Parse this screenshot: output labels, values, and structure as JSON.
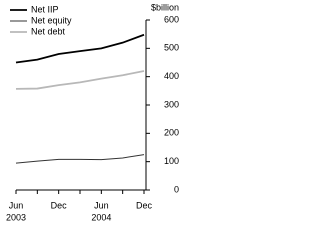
{
  "chart_data": {
    "type": "line",
    "y_label": "$billion",
    "categories": [
      "Jun",
      null,
      "Dec",
      null,
      "Jun",
      null,
      "Dec"
    ],
    "year_labels": [
      "2003",
      null,
      null,
      null,
      "2004",
      null,
      null
    ],
    "series": [
      {
        "name": "Net IIP",
        "color": "#000000",
        "values": [
          450,
          460,
          480,
          490,
          500,
          520,
          548
        ]
      },
      {
        "name": "Net equity",
        "color": "#333333",
        "values": [
          95,
          102,
          108,
          108,
          107,
          113,
          125
        ]
      },
      {
        "name": "Net debt",
        "color": "#b8b8b8",
        "values": [
          357,
          358,
          370,
          380,
          393,
          405,
          420
        ]
      }
    ],
    "ylim": [
      0,
      600
    ],
    "yticks": [
      0,
      100,
      200,
      300,
      400,
      500,
      600
    ]
  }
}
